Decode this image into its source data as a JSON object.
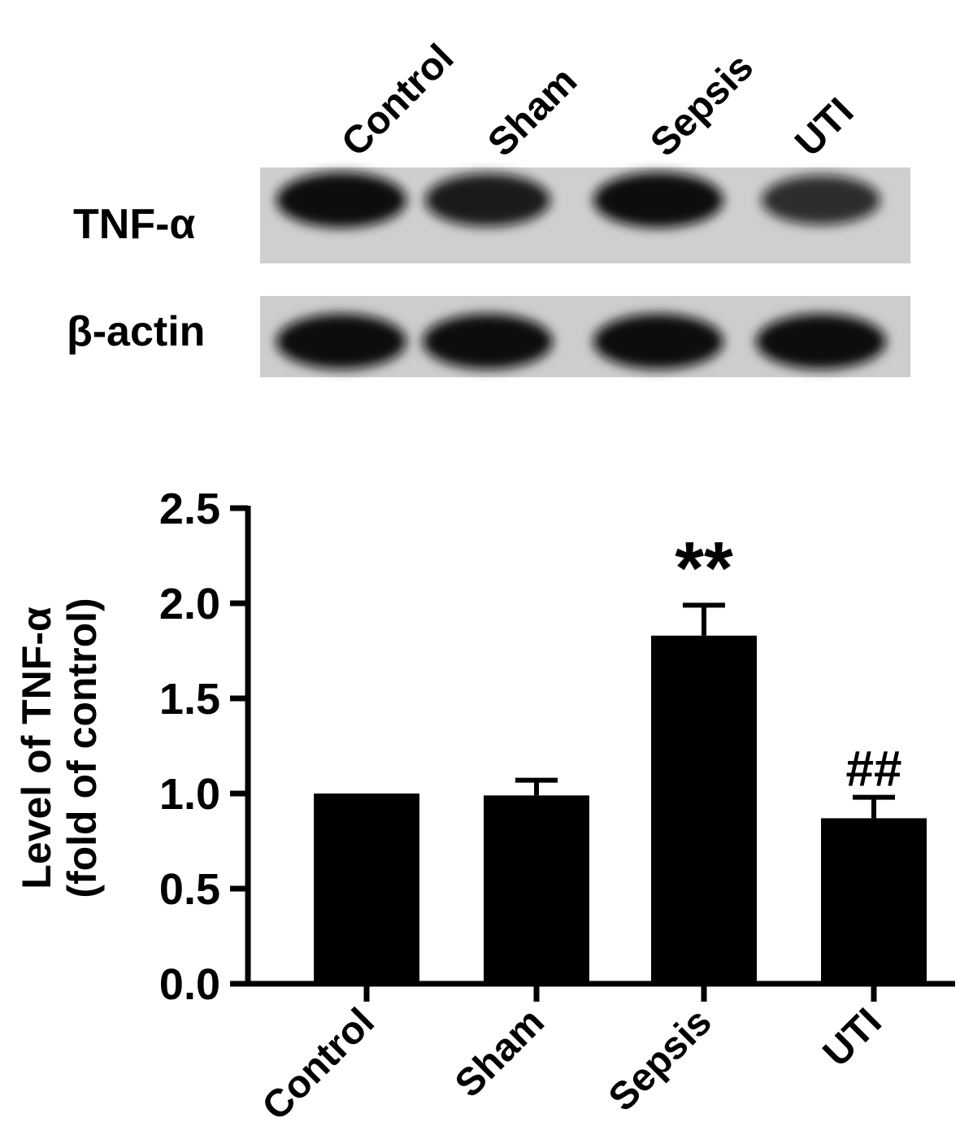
{
  "blot": {
    "lane_labels": [
      "Control",
      "Sham",
      "Sepsis",
      "UTI"
    ],
    "rows": [
      {
        "label": "TNF-α",
        "band_intensity": [
          1.0,
          0.85,
          1.0,
          0.65
        ]
      },
      {
        "label": "β-actin",
        "band_intensity": [
          1.0,
          1.0,
          1.0,
          1.0
        ]
      }
    ],
    "colors": {
      "membrane": "#cfcfcf",
      "band": "#111111"
    }
  },
  "chart_data": {
    "type": "bar",
    "categories": [
      "Control",
      "Sham",
      "Sepsis",
      "UTI"
    ],
    "values": [
      1.0,
      0.99,
      1.83,
      0.87
    ],
    "error": [
      0.0,
      0.08,
      0.16,
      0.11
    ],
    "annotations": [
      "",
      "",
      "**",
      "##"
    ],
    "title": "",
    "xlabel": "",
    "ylabel": "Level of TNF-α",
    "ylabel2": "(fold of control)",
    "ylim": [
      0,
      2.5
    ],
    "yticks": [
      "0.0",
      "0.5",
      "1.0",
      "1.5",
      "2.0",
      "2.5"
    ],
    "grid": false,
    "bar_color": "#000000"
  }
}
